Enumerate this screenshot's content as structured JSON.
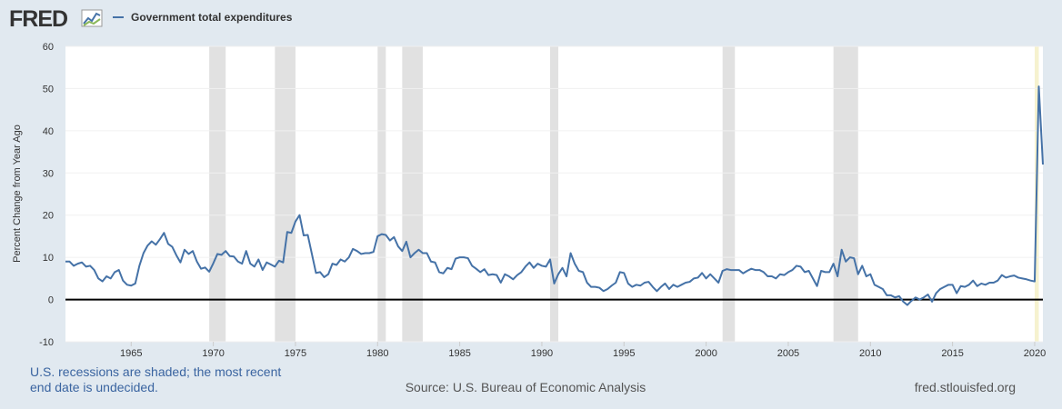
{
  "chart_data": {
    "type": "line",
    "logo": "FRED",
    "y_label": "Percent Change from Year Ago",
    "note_lines": [
      "U.S. recessions are shaded; the most recent",
      "end date is undecided."
    ],
    "source": "Source: U.S. Bureau of Economic Analysis",
    "site": "fred.stlouisfed.org",
    "xlim": [
      1961,
      2020.5
    ],
    "xticks": [
      1965,
      1970,
      1975,
      1980,
      1985,
      1990,
      1995,
      2000,
      2005,
      2010,
      2015,
      2020
    ],
    "ylim": [
      -10,
      60
    ],
    "yticks": [
      -10,
      0,
      10,
      20,
      30,
      40,
      50,
      60
    ],
    "grid": true,
    "zero_line": true,
    "recession_color": "#e1e1e1",
    "undecided_color": "#f6f2cf",
    "recessions": [
      {
        "start": 1969.75,
        "end": 1970.75
      },
      {
        "start": 1973.75,
        "end": 1975.0
      },
      {
        "start": 1980.0,
        "end": 1980.5
      },
      {
        "start": 1981.5,
        "end": 1982.75
      },
      {
        "start": 1990.5,
        "end": 1991.0
      },
      {
        "start": 2001.0,
        "end": 2001.75
      },
      {
        "start": 2007.75,
        "end": 2009.25
      },
      {
        "start": 2020.0,
        "end": 2020.25,
        "undecided": true
      }
    ],
    "x": [
      1961,
      1961.25,
      1961.5,
      1961.75,
      1962,
      1962.25,
      1962.5,
      1962.75,
      1963,
      1963.25,
      1963.5,
      1963.75,
      1964,
      1964.25,
      1964.5,
      1964.75,
      1965,
      1965.25,
      1965.5,
      1965.75,
      1966,
      1966.25,
      1966.5,
      1966.75,
      1967,
      1967.25,
      1967.5,
      1967.75,
      1968,
      1968.25,
      1968.5,
      1968.75,
      1969,
      1969.25,
      1969.5,
      1969.75,
      1970,
      1970.25,
      1970.5,
      1970.75,
      1971,
      1971.25,
      1971.5,
      1971.75,
      1972,
      1972.25,
      1972.5,
      1972.75,
      1973,
      1973.25,
      1973.5,
      1973.75,
      1974,
      1974.25,
      1974.5,
      1974.75,
      1975,
      1975.25,
      1975.5,
      1975.75,
      1976,
      1976.25,
      1976.5,
      1976.75,
      1977,
      1977.25,
      1977.5,
      1977.75,
      1978,
      1978.25,
      1978.5,
      1978.75,
      1979,
      1979.25,
      1979.5,
      1979.75,
      1980,
      1980.25,
      1980.5,
      1980.75,
      1981,
      1981.25,
      1981.5,
      1981.75,
      1982,
      1982.25,
      1982.5,
      1982.75,
      1983,
      1983.25,
      1983.5,
      1983.75,
      1984,
      1984.25,
      1984.5,
      1984.75,
      1985,
      1985.25,
      1985.5,
      1985.75,
      1986,
      1986.25,
      1986.5,
      1986.75,
      1987,
      1987.25,
      1987.5,
      1987.75,
      1988,
      1988.25,
      1988.5,
      1988.75,
      1989,
      1989.25,
      1989.5,
      1989.75,
      1990,
      1990.25,
      1990.5,
      1990.75,
      1991,
      1991.25,
      1991.5,
      1991.75,
      1992,
      1992.25,
      1992.5,
      1992.75,
      1993,
      1993.25,
      1993.5,
      1993.75,
      1994,
      1994.25,
      1994.5,
      1994.75,
      1995,
      1995.25,
      1995.5,
      1995.75,
      1996,
      1996.25,
      1996.5,
      1996.75,
      1997,
      1997.25,
      1997.5,
      1997.75,
      1998,
      1998.25,
      1998.5,
      1998.75,
      1999,
      1999.25,
      1999.5,
      1999.75,
      2000,
      2000.25,
      2000.5,
      2000.75,
      2001,
      2001.25,
      2001.5,
      2001.75,
      2002,
      2002.25,
      2002.5,
      2002.75,
      2003,
      2003.25,
      2003.5,
      2003.75,
      2004,
      2004.25,
      2004.5,
      2004.75,
      2005,
      2005.25,
      2005.5,
      2005.75,
      2006,
      2006.25,
      2006.5,
      2006.75,
      2007,
      2007.25,
      2007.5,
      2007.75,
      2008,
      2008.25,
      2008.5,
      2008.75,
      2009,
      2009.25,
      2009.5,
      2009.75,
      2010,
      2010.25,
      2010.5,
      2010.75,
      2011,
      2011.25,
      2011.5,
      2011.75,
      2012,
      2012.25,
      2012.5,
      2012.75,
      2013,
      2013.25,
      2013.5,
      2013.75,
      2014,
      2014.25,
      2014.5,
      2014.75,
      2015,
      2015.25,
      2015.5,
      2015.75,
      2016,
      2016.25,
      2016.5,
      2016.75,
      2017,
      2017.25,
      2017.5,
      2017.75,
      2018,
      2018.25,
      2018.5,
      2018.75,
      2019,
      2019.25,
      2019.5,
      2019.75,
      2020,
      2020.25,
      2020.5
    ],
    "series": [
      {
        "name": "Government total expenditures",
        "color": "#4572a7",
        "values": [
          9,
          9,
          8,
          8.5,
          8.8,
          7.8,
          8,
          7,
          5,
          4.3,
          5.5,
          5,
          6.5,
          7,
          4.5,
          3.5,
          3.3,
          3.8,
          8,
          11,
          12.8,
          13.8,
          13,
          14.3,
          15.8,
          13.2,
          12.5,
          10.5,
          8.8,
          11.8,
          10.8,
          11.5,
          9,
          7.3,
          7.6,
          6.6,
          8.6,
          10.8,
          10.6,
          11.5,
          10.3,
          10.2,
          9,
          8.5,
          11.5,
          8.5,
          7.8,
          9.5,
          7,
          8.8,
          8.3,
          7.8,
          9.2,
          8.8,
          16,
          15.8,
          18.5,
          20,
          15.2,
          15.3,
          10.8,
          6.3,
          6.5,
          5.3,
          6,
          8.5,
          8.2,
          9.5,
          9,
          10,
          12,
          11.5,
          10.8,
          11,
          11,
          11.3,
          15,
          15.5,
          15.3,
          14,
          14.8,
          12.6,
          11.5,
          13.7,
          10,
          11,
          11.8,
          11,
          11,
          9,
          8.8,
          6.5,
          6.2,
          7.5,
          7.2,
          9.7,
          10,
          10,
          9.8,
          8,
          7.3,
          6.5,
          7.2,
          5.8,
          6,
          5.8,
          4,
          6,
          5.5,
          4.8,
          5.8,
          6.5,
          7.8,
          8.8,
          7.5,
          8.5,
          8,
          7.8,
          9.5,
          3.8,
          6,
          7.5,
          5.5,
          11,
          8.5,
          6.8,
          6.5,
          4,
          3,
          3,
          2.8,
          2,
          2.5,
          3.3,
          4,
          6.5,
          6.3,
          3.8,
          3,
          3.5,
          3.3,
          4,
          4.2,
          3,
          2,
          3,
          3.8,
          2.5,
          3.5,
          3,
          3.5,
          4,
          4.2,
          5,
          5.2,
          6.3,
          5,
          6,
          5,
          4,
          6.8,
          7.2,
          7,
          7,
          7,
          6.2,
          6.8,
          7.3,
          7,
          7,
          6.5,
          5.5,
          5.5,
          5,
          6,
          5.8,
          6.5,
          7,
          8,
          7.8,
          6.5,
          6.8,
          5,
          3.2,
          6.8,
          6.5,
          6.5,
          8.5,
          5.5,
          11.8,
          9,
          10,
          9.8,
          6,
          8,
          5.5,
          6,
          3.5,
          3,
          2.5,
          1,
          1,
          0.5,
          0.8,
          -0.5,
          -1.3,
          -0.3,
          0.5,
          0,
          0.5,
          1.2,
          -0.5,
          1.5,
          2.5,
          3,
          3.5,
          3.5,
          1.5,
          3.2,
          3,
          3.5,
          4.5,
          3.2,
          3.8,
          3.5,
          4,
          4,
          4.5,
          5.8,
          5.2,
          5.5,
          5.7,
          5.2,
          5,
          4.8,
          4.5,
          4.3,
          50.5,
          32
        ]
      }
    ]
  }
}
